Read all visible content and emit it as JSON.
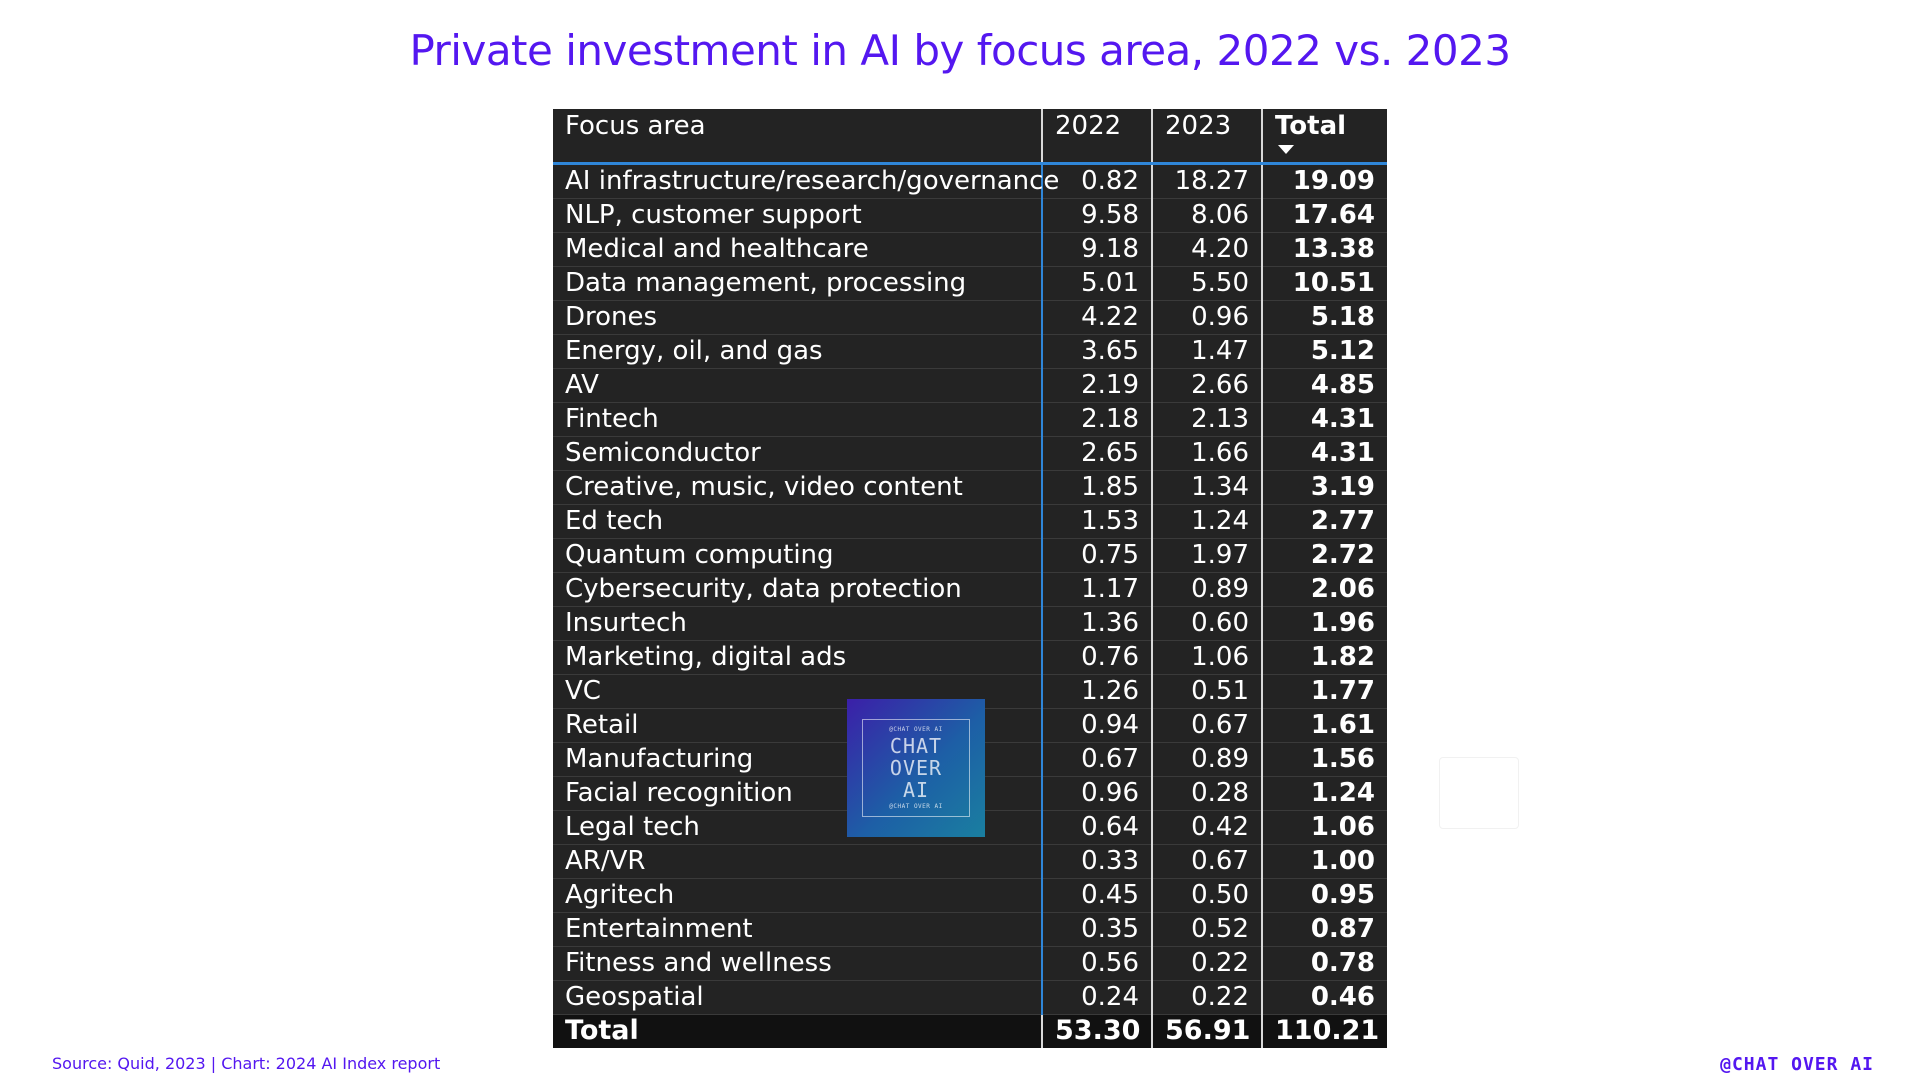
{
  "title": "Private investment in AI by focus area, 2022 vs. 2023",
  "source": "Source: Quid, 2023 | Chart: 2024 AI Index report",
  "brand": "@CHAT OVER AI",
  "watermark": {
    "top": "@CHAT OVER AI",
    "line1": "CHAT",
    "line2": "OVER",
    "line3": "AI",
    "bottom": "@CHAT OVER AI"
  },
  "chart_data": {
    "type": "table",
    "title": "Private investment in AI by focus area, 2022 vs. 2023",
    "columns": [
      "Focus area",
      "2022",
      "2023",
      "Total"
    ],
    "sorted_by": "Total",
    "rows": [
      {
        "area": "AI infrastructure/research/governance",
        "y2022": "0.82",
        "y2023": "18.27",
        "total": "19.09"
      },
      {
        "area": "NLP, customer support",
        "y2022": "9.58",
        "y2023": "8.06",
        "total": "17.64"
      },
      {
        "area": "Medical and healthcare",
        "y2022": "9.18",
        "y2023": "4.20",
        "total": "13.38"
      },
      {
        "area": "Data management, processing",
        "y2022": "5.01",
        "y2023": "5.50",
        "total": "10.51"
      },
      {
        "area": "Drones",
        "y2022": "4.22",
        "y2023": "0.96",
        "total": "5.18"
      },
      {
        "area": "Energy, oil, and gas",
        "y2022": "3.65",
        "y2023": "1.47",
        "total": "5.12"
      },
      {
        "area": "AV",
        "y2022": "2.19",
        "y2023": "2.66",
        "total": "4.85"
      },
      {
        "area": "Fintech",
        "y2022": "2.18",
        "y2023": "2.13",
        "total": "4.31"
      },
      {
        "area": "Semiconductor",
        "y2022": "2.65",
        "y2023": "1.66",
        "total": "4.31"
      },
      {
        "area": "Creative, music, video content",
        "y2022": "1.85",
        "y2023": "1.34",
        "total": "3.19"
      },
      {
        "area": "Ed tech",
        "y2022": "1.53",
        "y2023": "1.24",
        "total": "2.77"
      },
      {
        "area": "Quantum computing",
        "y2022": "0.75",
        "y2023": "1.97",
        "total": "2.72"
      },
      {
        "area": "Cybersecurity, data protection",
        "y2022": "1.17",
        "y2023": "0.89",
        "total": "2.06"
      },
      {
        "area": "Insurtech",
        "y2022": "1.36",
        "y2023": "0.60",
        "total": "1.96"
      },
      {
        "area": "Marketing, digital ads",
        "y2022": "0.76",
        "y2023": "1.06",
        "total": "1.82"
      },
      {
        "area": "VC",
        "y2022": "1.26",
        "y2023": "0.51",
        "total": "1.77"
      },
      {
        "area": "Retail",
        "y2022": "0.94",
        "y2023": "0.67",
        "total": "1.61"
      },
      {
        "area": "Manufacturing",
        "y2022": "0.67",
        "y2023": "0.89",
        "total": "1.56"
      },
      {
        "area": "Facial recognition",
        "y2022": "0.96",
        "y2023": "0.28",
        "total": "1.24"
      },
      {
        "area": "Legal tech",
        "y2022": "0.64",
        "y2023": "0.42",
        "total": "1.06"
      },
      {
        "area": "AR/VR",
        "y2022": "0.33",
        "y2023": "0.67",
        "total": "1.00"
      },
      {
        "area": "Agritech",
        "y2022": "0.45",
        "y2023": "0.50",
        "total": "0.95"
      },
      {
        "area": "Entertainment",
        "y2022": "0.35",
        "y2023": "0.52",
        "total": "0.87"
      },
      {
        "area": "Fitness and wellness",
        "y2022": "0.56",
        "y2023": "0.22",
        "total": "0.78"
      },
      {
        "area": "Geospatial",
        "y2022": "0.24",
        "y2023": "0.22",
        "total": "0.46"
      }
    ],
    "totals": {
      "label": "Total",
      "y2022": "53.30",
      "y2023": "56.91",
      "total": "110.21"
    }
  },
  "colors": {
    "accent": "#5417f0",
    "table_bg": "#232323",
    "header_rule": "#2f86d8"
  }
}
